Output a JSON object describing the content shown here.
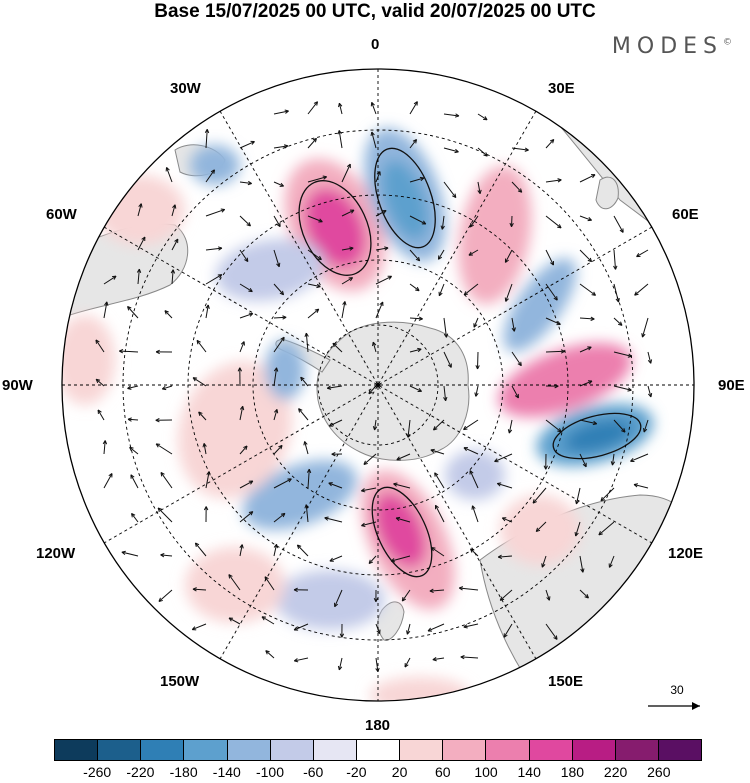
{
  "title": "Base 15/07/2025 00 UTC, valid 20/07/2025 00 UTC",
  "brand": "MODES",
  "brand_mark": "©",
  "longitude_labels": {
    "top": "0",
    "tr": "30E",
    "rt": "60E",
    "right": "90E",
    "rb": "120E",
    "br": "150E",
    "bottom": "180",
    "bl": "150W",
    "lb": "120W",
    "left": "90W",
    "lt": "60W",
    "tl": "30W"
  },
  "reference_vector": {
    "label": "30"
  },
  "colorbar": {
    "tick_labels": [
      "-260",
      "-220",
      "-180",
      "-140",
      "-100",
      "-60",
      "-20",
      "20",
      "60",
      "100",
      "140",
      "180",
      "220",
      "260"
    ],
    "colors": [
      "#0d3b5c",
      "#1c5f8c",
      "#2f7fb5",
      "#5da0ce",
      "#92b6dd",
      "#c3cbe8",
      "#e6e6f3",
      "#ffffff",
      "#f8d6d6",
      "#f3aec0",
      "#ec7fae",
      "#e0489f",
      "#b81d84",
      "#861c6e",
      "#5a0f63"
    ]
  },
  "colors": {
    "land": "#e6e6e6",
    "coast": "#888888",
    "grid": "#000000",
    "arrow": "#111111"
  }
}
